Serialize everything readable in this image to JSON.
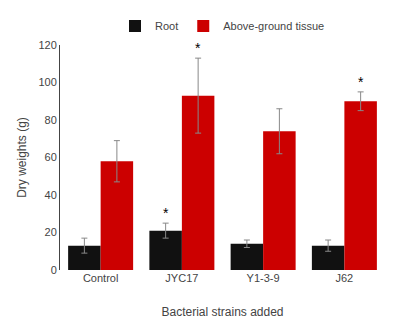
{
  "chart_data": {
    "type": "bar",
    "xlabel": "Bacterial strains added",
    "ylabel": "Dry weights (g)",
    "categories": [
      "Control",
      "JYC17",
      "Y1-3-9",
      "J62"
    ],
    "series": [
      {
        "name": "Root",
        "color": "#111111",
        "values": [
          13,
          21,
          14,
          13
        ],
        "errors": [
          4,
          4,
          2,
          3
        ]
      },
      {
        "name": "Above-ground tissue",
        "color": "#cc0000",
        "values": [
          58,
          93,
          74,
          90
        ],
        "errors": [
          11,
          20,
          12,
          5
        ]
      }
    ],
    "annotations": [
      {
        "text": "*",
        "category": "JYC17",
        "series": "Root"
      },
      {
        "text": "*",
        "category": "JYC17",
        "series": "Above-ground tissue"
      },
      {
        "text": "*",
        "category": "J62",
        "series": "Above-ground tissue"
      }
    ],
    "ylim": [
      0,
      120
    ],
    "yticks": [
      0,
      20,
      40,
      60,
      80,
      100,
      120
    ],
    "grid": false,
    "legend": "top"
  }
}
